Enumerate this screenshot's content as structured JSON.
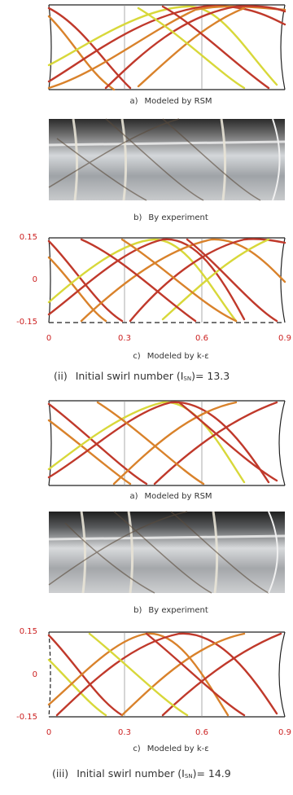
{
  "groups": [
    {
      "rsm_caption": {
        "letter": "a)",
        "text": "Modeled by RSM"
      },
      "exp_caption": {
        "letter": "b)",
        "text": "By experiment"
      },
      "ke_caption": {
        "letter": "c)",
        "text": "Modeled by k-ε"
      },
      "yticks": [
        "0.15",
        "0",
        "-0.15"
      ],
      "xticks": [
        "0",
        "0.3",
        "0.6",
        "0.9"
      ],
      "heading": {
        "num": "(ii)",
        "text": "Initial swirl number (I",
        "sub": "SN",
        "value": ")= 13.3"
      }
    },
    {
      "rsm_caption": {
        "letter": "a)",
        "text": "Modeled by RSM"
      },
      "exp_caption": {
        "letter": "b)",
        "text": "By experiment"
      },
      "ke_caption": {
        "letter": "c)",
        "text": "Modeled by k-ε"
      },
      "yticks": [
        "0.15",
        "0",
        "-0.15"
      ],
      "xticks": [
        "0",
        "0.3",
        "0.6",
        "0.9"
      ],
      "heading": {
        "num": "(iii)",
        "text": "Initial swirl number (I",
        "sub": "SN",
        "value": ")= 14.9"
      }
    }
  ],
  "colors": {
    "axis_label": "#cc2222",
    "line_red": "#c0392b",
    "line_orange": "#d9822b",
    "line_yellow": "#d8d83a",
    "frame": "#222222"
  }
}
